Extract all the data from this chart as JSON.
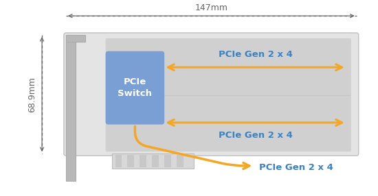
{
  "bg_color": "#ffffff",
  "card_outer_color": "#e4e4e4",
  "card_inner_color": "#d0d0d0",
  "bracket_color": "#b8b8b8",
  "switch_color": "#7a9fd4",
  "switch_text": "PCIe\nSwitch",
  "arrow_color": "#f5a623",
  "pcie_text_color": "#3b82c4",
  "pcie_label": "PCIe Gen 2 x 4",
  "dim_color": "#666666",
  "width_label": "147mm",
  "height_label": "68.9mm",
  "switch_fontsize": 9.5,
  "pcie_fontsize": 9.5,
  "dim_fontsize": 9
}
